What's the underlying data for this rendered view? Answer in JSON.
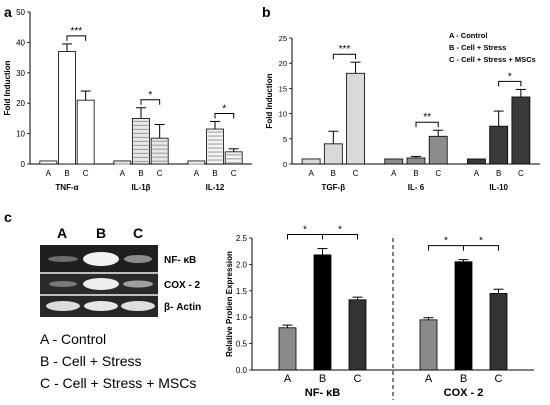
{
  "panel_labels": {
    "a": "a",
    "b": "b",
    "c": "c"
  },
  "legend_b": [
    "A - Control",
    "B - Cell + Stress",
    "C - Cell + Stress + MSCs"
  ],
  "legend_c": [
    "A - Control",
    "B - Cell + Stress",
    "C - Cell + Stress + MSCs"
  ],
  "blot": {
    "lane_labels": [
      "A",
      "B",
      "C"
    ],
    "band_labels": [
      "NF- κB",
      "COX - 2",
      "β- Actin"
    ]
  },
  "chart_data": [
    {
      "type": "bar",
      "panel": "a",
      "ylabel": "Fold Induction",
      "ylim": [
        0,
        50
      ],
      "yticks": [
        0,
        10,
        20,
        30,
        40,
        50
      ],
      "bar_labels": [
        "A",
        "B",
        "C"
      ],
      "groups": [
        {
          "name": "TNF-α",
          "values": [
            1,
            37,
            21
          ],
          "errors": [
            0,
            2.5,
            3
          ],
          "fills": [
            "#ffffff",
            "#ffffff",
            "#ffffff"
          ],
          "significance": {
            "between": [
              1,
              2
            ],
            "label": "***"
          }
        },
        {
          "name": "IL-1β",
          "values": [
            1,
            15,
            8.5
          ],
          "errors": [
            0,
            3.5,
            4.5
          ],
          "fills": [
            "#e8e8e8",
            "#e8e8e8",
            "#e8e8e8"
          ],
          "significance": {
            "between": [
              1,
              2
            ],
            "label": "*"
          }
        },
        {
          "name": "IL-12",
          "values": [
            1,
            11.5,
            4
          ],
          "errors": [
            0,
            2.5,
            1
          ],
          "fills": [
            "#f3f3f3",
            "#f3f3f3",
            "#f3f3f3"
          ],
          "significance": {
            "between": [
              1,
              2
            ],
            "label": "*"
          }
        }
      ]
    },
    {
      "type": "bar",
      "panel": "b",
      "ylabel": "Fold Induction",
      "ylim": [
        0,
        25
      ],
      "yticks": [
        0,
        5,
        10,
        15,
        20,
        25
      ],
      "bar_labels": [
        "A",
        "B",
        "C"
      ],
      "groups": [
        {
          "name": "TGF-β",
          "values": [
            1,
            4,
            18
          ],
          "errors": [
            0,
            2.5,
            2.2
          ],
          "fills": [
            "#d9d9d9",
            "#d9d9d9",
            "#d9d9d9"
          ],
          "significance": {
            "between": [
              1,
              2
            ],
            "label": "***"
          }
        },
        {
          "name": "IL- 6",
          "values": [
            1,
            1.2,
            5.5
          ],
          "errors": [
            0,
            0.3,
            1.2
          ],
          "fills": [
            "#8c8c8c",
            "#8c8c8c",
            "#8c8c8c"
          ],
          "significance": {
            "between": [
              1,
              2
            ],
            "label": "**"
          }
        },
        {
          "name": "IL-10",
          "values": [
            1,
            7.5,
            13.3
          ],
          "errors": [
            0,
            3,
            1.5
          ],
          "fills": [
            "#3a3a3a",
            "#3a3a3a",
            "#3a3a3a"
          ],
          "significance": {
            "between": [
              1,
              2
            ],
            "label": "*"
          }
        }
      ]
    },
    {
      "type": "bar",
      "panel": "c",
      "ylabel": "Relative Protien Expression",
      "ylim": [
        0,
        2.5
      ],
      "yticks": [
        0.0,
        0.5,
        1.0,
        1.5,
        2.0,
        2.5
      ],
      "bar_labels": [
        "A",
        "B",
        "C"
      ],
      "groups": [
        {
          "name": "NF- κB",
          "values": [
            0.8,
            2.18,
            1.33
          ],
          "errors": [
            0.05,
            0.12,
            0.05
          ],
          "fills": [
            "#8a8a8a",
            "#000000",
            "#333333"
          ],
          "significance": [
            {
              "between": [
                0,
                1
              ],
              "label": "*"
            },
            {
              "between": [
                1,
                2
              ],
              "label": "*"
            }
          ]
        },
        {
          "name": "COX - 2",
          "values": [
            0.95,
            2.05,
            1.45
          ],
          "errors": [
            0.04,
            0.04,
            0.08
          ],
          "fills": [
            "#8a8a8a",
            "#000000",
            "#333333"
          ],
          "significance": [
            {
              "between": [
                0,
                1
              ],
              "label": "*"
            },
            {
              "between": [
                1,
                2
              ],
              "label": "*"
            }
          ]
        }
      ]
    }
  ]
}
